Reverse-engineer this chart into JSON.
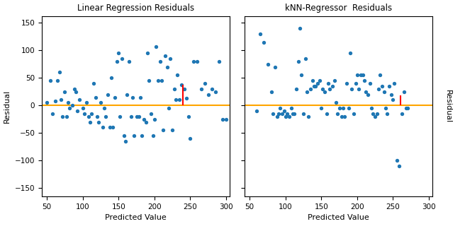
{
  "title_left": "Linear Regression Residuals",
  "title_right": "kNN-Regressor  Residuals",
  "xlabel": "Predicted Value",
  "ylabel": "Residual",
  "xlim_left": [
    43,
    305
  ],
  "xlim_right": [
    43,
    305
  ],
  "ylim": [
    -165,
    162
  ],
  "yticks": [
    -150,
    -100,
    -50,
    0,
    50,
    100,
    150
  ],
  "xticks_left": [
    50,
    100,
    150,
    200,
    250,
    300
  ],
  "xticks_right": [
    50,
    100,
    150,
    200,
    250,
    300
  ],
  "dot_color": "#1f77b4",
  "dot_size": 8,
  "line_color": "orange",
  "line_width": 1.5,
  "residual_line_color": "red",
  "lr_scatter_x": [
    50,
    55,
    58,
    62,
    65,
    68,
    70,
    72,
    75,
    78,
    80,
    82,
    85,
    88,
    90,
    92,
    95,
    100,
    102,
    105,
    108,
    110,
    112,
    115,
    118,
    120,
    122,
    125,
    128,
    130,
    132,
    135,
    138,
    140,
    142,
    145,
    148,
    150,
    152,
    155,
    158,
    160,
    162,
    165,
    168,
    170,
    172,
    175,
    178,
    180,
    182,
    185,
    188,
    190,
    192,
    195,
    198,
    200,
    202,
    205,
    208,
    210,
    212,
    215,
    218,
    220,
    222,
    225,
    228,
    230,
    232,
    235,
    238,
    242,
    245,
    248,
    250,
    255,
    260,
    265,
    270,
    275,
    280,
    285,
    290,
    295,
    300
  ],
  "lr_scatter_y": [
    5,
    45,
    -15,
    8,
    45,
    60,
    10,
    -20,
    25,
    -20,
    5,
    -5,
    0,
    30,
    25,
    -10,
    10,
    -5,
    -15,
    5,
    -20,
    -30,
    -15,
    40,
    15,
    -20,
    -30,
    5,
    -40,
    -5,
    -20,
    20,
    -40,
    50,
    -40,
    15,
    80,
    95,
    -20,
    85,
    -55,
    -65,
    20,
    80,
    -20,
    15,
    -55,
    -20,
    -20,
    15,
    -55,
    -25,
    -30,
    95,
    45,
    -15,
    -55,
    -25,
    107,
    45,
    80,
    45,
    -45,
    90,
    70,
    -5,
    85,
    -45,
    30,
    10,
    55,
    10,
    38,
    30,
    13,
    -20,
    -60,
    80,
    80,
    30,
    40,
    20,
    30,
    25,
    80,
    -25,
    -25
  ],
  "knn_scatter_x": [
    60,
    65,
    70,
    75,
    80,
    82,
    85,
    88,
    90,
    92,
    95,
    98,
    100,
    102,
    105,
    108,
    110,
    112,
    115,
    118,
    120,
    122,
    125,
    128,
    130,
    132,
    135,
    138,
    140,
    142,
    145,
    148,
    150,
    152,
    155,
    158,
    160,
    162,
    165,
    168,
    170,
    172,
    175,
    178,
    180,
    182,
    185,
    188,
    190,
    192,
    195,
    198,
    200,
    202,
    205,
    208,
    210,
    212,
    215,
    218,
    220,
    222,
    225,
    228,
    230,
    232,
    235,
    238,
    240,
    242,
    245,
    248,
    250,
    252,
    255,
    258,
    262,
    265,
    268,
    270
  ],
  "knn_scatter_y": [
    -10,
    130,
    115,
    75,
    25,
    -15,
    70,
    -20,
    -15,
    -5,
    -15,
    -10,
    -20,
    -15,
    -20,
    -5,
    -15,
    -15,
    30,
    80,
    140,
    55,
    -15,
    85,
    25,
    -20,
    30,
    45,
    35,
    35,
    40,
    45,
    -5,
    30,
    25,
    -15,
    40,
    30,
    35,
    45,
    5,
    -15,
    -5,
    -20,
    -5,
    -20,
    40,
    -5,
    95,
    30,
    -15,
    40,
    55,
    30,
    55,
    55,
    45,
    25,
    20,
    40,
    -5,
    -15,
    -20,
    -15,
    30,
    55,
    35,
    25,
    -5,
    -15,
    35,
    20,
    10,
    40,
    -100,
    -110,
    -15,
    25,
    -5,
    -5
  ],
  "lr_red_x": 240,
  "lr_red_y0": 0,
  "lr_red_y1": 38,
  "knn_red_x": 260,
  "knn_red_y0": 0,
  "knn_red_y1": 18
}
